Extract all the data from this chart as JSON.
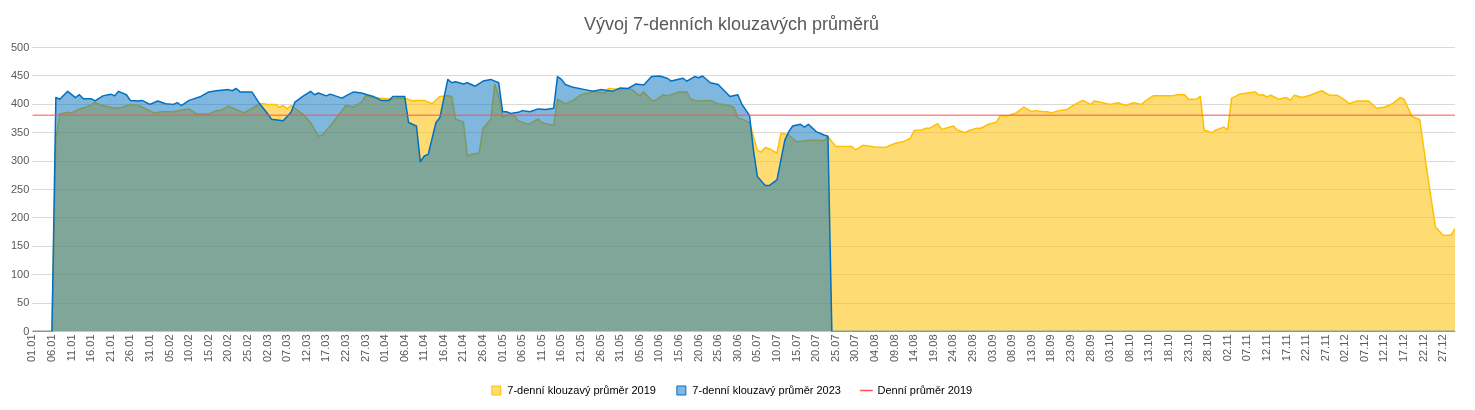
{
  "chart_data": {
    "type": "area",
    "title": "Vývoj 7-denních klouzavých průměrů",
    "xlim": [
      "--01-01",
      "--12-30"
    ],
    "xticks": [
      {
        "value": "--01-01",
        "label": "01.01"
      },
      {
        "value": "--01-06",
        "label": "06.01"
      },
      {
        "value": "--01-11",
        "label": "11.01"
      },
      {
        "value": "--01-16",
        "label": "16.01"
      },
      {
        "value": "--01-21",
        "label": "21.01"
      },
      {
        "value": "--01-26",
        "label": "26.01"
      },
      {
        "value": "--01-31",
        "label": "31.01"
      },
      {
        "value": "--02-05",
        "label": "05.02"
      },
      {
        "value": "--02-10",
        "label": "10.02"
      },
      {
        "value": "--02-15",
        "label": "15.02"
      },
      {
        "value": "--02-20",
        "label": "20.02"
      },
      {
        "value": "--02-25",
        "label": "25.02"
      },
      {
        "value": "--03-02",
        "label": "02.03"
      },
      {
        "value": "--03-07",
        "label": "07.03"
      },
      {
        "value": "--03-12",
        "label": "12.03"
      },
      {
        "value": "--03-17",
        "label": "17.03"
      },
      {
        "value": "--03-22",
        "label": "22.03"
      },
      {
        "value": "--03-27",
        "label": "27.03"
      },
      {
        "value": "--04-01",
        "label": "01.04"
      },
      {
        "value": "--04-06",
        "label": "06.04"
      },
      {
        "value": "--04-11",
        "label": "11.04"
      },
      {
        "value": "--04-16",
        "label": "16.04"
      },
      {
        "value": "--04-21",
        "label": "21.04"
      },
      {
        "value": "--04-26",
        "label": "26.04"
      },
      {
        "value": "--05-01",
        "label": "01.05"
      },
      {
        "value": "--05-06",
        "label": "06.05"
      },
      {
        "value": "--05-11",
        "label": "11.05"
      },
      {
        "value": "--05-16",
        "label": "16.05"
      },
      {
        "value": "--05-21",
        "label": "21.05"
      },
      {
        "value": "--05-26",
        "label": "26.05"
      },
      {
        "value": "--05-31",
        "label": "31.05"
      },
      {
        "value": "--06-05",
        "label": "05.06"
      },
      {
        "value": "--06-10",
        "label": "10.06"
      },
      {
        "value": "--06-15",
        "label": "15.06"
      },
      {
        "value": "--06-20",
        "label": "20.06"
      },
      {
        "value": "--06-25",
        "label": "25.06"
      },
      {
        "value": "--06-30",
        "label": "30.06"
      },
      {
        "value": "--07-05",
        "label": "05.07"
      },
      {
        "value": "--07-10",
        "label": "10.07"
      },
      {
        "value": "--07-15",
        "label": "15.07"
      },
      {
        "value": "--07-20",
        "label": "20.07"
      },
      {
        "value": "--07-25",
        "label": "25.07"
      },
      {
        "value": "--07-30",
        "label": "30.07"
      },
      {
        "value": "--08-04",
        "label": "04.08"
      },
      {
        "value": "--08-09",
        "label": "09.08"
      },
      {
        "value": "--08-14",
        "label": "14.08"
      },
      {
        "value": "--08-19",
        "label": "19.08"
      },
      {
        "value": "--08-24",
        "label": "24.08"
      },
      {
        "value": "--08-29",
        "label": "29.08"
      },
      {
        "value": "--09-03",
        "label": "03.09"
      },
      {
        "value": "--09-08",
        "label": "08.09"
      },
      {
        "value": "--09-13",
        "label": "13.09"
      },
      {
        "value": "--09-18",
        "label": "18.09"
      },
      {
        "value": "--09-23",
        "label": "23.09"
      },
      {
        "value": "--09-28",
        "label": "28.09"
      },
      {
        "value": "--10-03",
        "label": "03.10"
      },
      {
        "value": "--10-08",
        "label": "08.10"
      },
      {
        "value": "--10-13",
        "label": "13.10"
      },
      {
        "value": "--10-18",
        "label": "18.10"
      },
      {
        "value": "--10-23",
        "label": "23.10"
      },
      {
        "value": "--10-28",
        "label": "28.10"
      },
      {
        "value": "--11-02",
        "label": "02.11"
      },
      {
        "value": "--11-07",
        "label": "07.11"
      },
      {
        "value": "--11-12",
        "label": "12.11"
      },
      {
        "value": "--11-17",
        "label": "17.11"
      },
      {
        "value": "--11-22",
        "label": "22.11"
      },
      {
        "value": "--11-27",
        "label": "27.11"
      },
      {
        "value": "--12-02",
        "label": "02.12"
      },
      {
        "value": "--12-07",
        "label": "07.12"
      },
      {
        "value": "--12-12",
        "label": "12.12"
      },
      {
        "value": "--12-17",
        "label": "17.12"
      },
      {
        "value": "--12-22",
        "label": "22.12"
      },
      {
        "value": "--12-27",
        "label": "27.12"
      }
    ],
    "ylim": [
      0,
      500
    ],
    "yticks": [
      0,
      50,
      100,
      150,
      200,
      250,
      300,
      350,
      400,
      450,
      500
    ],
    "grid": "y",
    "legend": "bottom",
    "series": [
      {
        "name": "7-denní klouzavý průměr 2019",
        "color": "#ffc000",
        "x": [
          "--01-01",
          "--01-06",
          "--01-07",
          "--01-08",
          "--01-10",
          "--01-11",
          "--01-13",
          "--01-15",
          "--01-17",
          "--01-19",
          "--01-22",
          "--01-24",
          "--01-26",
          "--01-28",
          "--01-30",
          "--02-01",
          "--02-03",
          "--02-06",
          "--02-09",
          "--02-10",
          "--02-12",
          "--02-15",
          "--02-17",
          "--02-18",
          "--02-20",
          "--02-22",
          "--02-24",
          "--02-26",
          "--02-28",
          "--03-01",
          "--03-02",
          "--03-04",
          "--03-05",
          "--03-06",
          "--03-07",
          "--03-08",
          "--03-11",
          "--03-13",
          "--03-15",
          "--03-16",
          "--03-18",
          "--03-20",
          "--03-22",
          "--03-24",
          "--03-26",
          "--03-27",
          "--03-29",
          "--03-31",
          "--04-03",
          "--04-04",
          "--04-06",
          "--04-08",
          "--04-09",
          "--04-11",
          "--04-13",
          "--04-15",
          "--04-17",
          "--04-18",
          "--04-19",
          "--04-21",
          "--04-22",
          "--04-23",
          "--04-25",
          "--04-26",
          "--04-28",
          "--04-29",
          "--04-30",
          "--05-01",
          "--05-02",
          "--05-04",
          "--05-05",
          "--05-07",
          "--05-08",
          "--05-10",
          "--05-11",
          "--05-12",
          "--05-14",
          "--05-15",
          "--05-17",
          "--05-19",
          "--05-21",
          "--05-23",
          "--05-24",
          "--05-27",
          "--05-28",
          "--05-31",
          "--06-02",
          "--06-03",
          "--06-05",
          "--06-06",
          "--06-08",
          "--06-09",
          "--06-11",
          "--06-12",
          "--06-15",
          "--06-17",
          "--06-18",
          "--06-19",
          "--06-21",
          "--06-23",
          "--06-25",
          "--06-27",
          "--06-29",
          "--06-30",
          "--07-02",
          "--07-03",
          "--07-05",
          "--07-06",
          "--07-07",
          "--07-08",
          "--07-10",
          "--07-11",
          "--07-13",
          "--07-15",
          "--07-18",
          "--07-20",
          "--07-22",
          "--07-23",
          "--07-25",
          "--07-27",
          "--07-29",
          "--07-30",
          "--08-01",
          "--08-04",
          "--08-06",
          "--08-07",
          "--08-09",
          "--08-11",
          "--08-13",
          "--08-14",
          "--08-16",
          "--08-17",
          "--08-18",
          "--08-20",
          "--08-21",
          "--08-24",
          "--08-25",
          "--08-27",
          "--08-28",
          "--08-30",
          "--08-31",
          "--09-02",
          "--09-04",
          "--09-05",
          "--09-07",
          "--09-09",
          "--09-11",
          "--09-13",
          "--09-14",
          "--09-16",
          "--09-17",
          "--09-18",
          "--09-20",
          "--09-22",
          "--09-24",
          "--09-26",
          "--09-28",
          "--09-29",
          "--10-01",
          "--10-03",
          "--10-05",
          "--10-07",
          "--10-09",
          "--10-11",
          "--10-12",
          "--10-14",
          "--10-17",
          "--10-19",
          "--10-20",
          "--10-22",
          "--10-23",
          "--10-25",
          "--10-26",
          "--10-27",
          "--10-29",
          "--10-30",
          "--11-01",
          "--11-02",
          "--11-03",
          "--11-04",
          "--11-05",
          "--11-07",
          "--11-09",
          "--11-10",
          "--11-11",
          "--11-12",
          "--11-13",
          "--11-15",
          "--11-17",
          "--11-18",
          "--11-19",
          "--11-21",
          "--11-23",
          "--11-26",
          "--11-28",
          "--11-30",
          "--12-02",
          "--12-03",
          "--12-05",
          "--12-08",
          "--12-10",
          "--12-12",
          "--12-14",
          "--12-16",
          "--12-17",
          "--12-19",
          "--12-21",
          "--12-23",
          "--12-25",
          "--12-27",
          "--12-29",
          "--12-30"
        ],
        "values": [
          0,
          0,
          337,
          383,
          386,
          385,
          392,
          396,
          403,
          398,
          393,
          395,
          400,
          398,
          392,
          385,
          387,
          387,
          391,
          392,
          383,
          383,
          389,
          389,
          397,
          391,
          385,
          393,
          401,
          401,
          400,
          400,
          395,
          398,
          392,
          398,
          383,
          368,
          344,
          346,
          362,
          380,
          398,
          395,
          404,
          415,
          412,
          411,
          409,
          411,
          411,
          406,
          407,
          407,
          401,
          414,
          415,
          414,
          374,
          369,
          309,
          312,
          314,
          358,
          374,
          435,
          414,
          377,
          381,
          380,
          371,
          366,
          366,
          374,
          368,
          366,
          363,
          409,
          401,
          407,
          417,
          420,
          423,
          420,
          428,
          426,
          428,
          426,
          415,
          422,
          407,
          407,
          417,
          415,
          422,
          422,
          409,
          407,
          406,
          407,
          401,
          399,
          395,
          377,
          371,
          368,
          319,
          316,
          324,
          322,
          314,
          349,
          346,
          334,
          337,
          337,
          336,
          343,
          326,
          326,
          326,
          320,
          328,
          325,
          324,
          325,
          331,
          334,
          340,
          354,
          355,
          358,
          358,
          366,
          356,
          362,
          355,
          350,
          354,
          358,
          358,
          365,
          369,
          380,
          380,
          385,
          395,
          387,
          389,
          387,
          387,
          385,
          389,
          391,
          400,
          407,
          400,
          406,
          403,
          400,
          403,
          398,
          403,
          400,
          406,
          415,
          415,
          415,
          417,
          417,
          409,
          409,
          414,
          355,
          350,
          355,
          360,
          355,
          411,
          414,
          418,
          420,
          422,
          416,
          417,
          413,
          416,
          409,
          412,
          407,
          416,
          412,
          416,
          424,
          416,
          416,
          407,
          401,
          406,
          406,
          393,
          395,
          401,
          412,
          409,
          379,
          373,
          276,
          184,
          169,
          170,
          181
        ]
      },
      {
        "name": "7-denní klouzavý průměr 2023",
        "color": "#0070c0",
        "x": [
          "--01-01",
          "--01-06",
          "--01-07",
          "--01-08",
          "--01-10",
          "--01-12",
          "--01-13",
          "--01-14",
          "--01-16",
          "--01-17",
          "--01-19",
          "--01-21",
          "--01-22",
          "--01-23",
          "--01-25",
          "--01-26",
          "--01-28",
          "--01-29",
          "--01-31",
          "--02-02",
          "--02-04",
          "--02-06",
          "--02-07",
          "--02-08",
          "--02-10",
          "--02-13",
          "--02-15",
          "--02-17",
          "--02-20",
          "--02-21",
          "--02-22",
          "--02-23",
          "--02-26",
          "--02-28",
          "--03-02",
          "--03-03",
          "--03-06",
          "--03-08",
          "--03-09",
          "--03-11",
          "--03-13",
          "--03-14",
          "--03-15",
          "--03-17",
          "--03-18",
          "--03-21",
          "--03-22",
          "--03-24",
          "--03-26",
          "--03-27",
          "--03-29",
          "--03-31",
          "--04-02",
          "--04-03",
          "--04-06",
          "--04-07",
          "--04-09",
          "--04-10",
          "--04-11",
          "--04-12",
          "--04-14",
          "--04-15",
          "--04-17",
          "--04-18",
          "--04-19",
          "--04-21",
          "--04-22",
          "--04-24",
          "--04-26",
          "--04-28",
          "--04-29",
          "--04-30",
          "--05-01",
          "--05-02",
          "--05-03",
          "--05-05",
          "--05-06",
          "--05-08",
          "--05-10",
          "--05-12",
          "--05-14",
          "--05-15",
          "--05-16",
          "--05-17",
          "--05-19",
          "--05-22",
          "--05-24",
          "--05-26",
          "--05-29",
          "--05-31",
          "--06-02",
          "--06-04",
          "--06-06",
          "--06-08",
          "--06-10",
          "--06-12",
          "--06-13",
          "--06-16",
          "--06-17",
          "--06-19",
          "--06-20",
          "--06-21",
          "--06-23",
          "--06-25",
          "--06-27",
          "--06-28",
          "--06-30",
          "--07-01",
          "--07-03",
          "--07-04",
          "--07-05",
          "--07-07",
          "--07-08",
          "--07-10",
          "--07-12",
          "--07-13",
          "--07-14",
          "--07-16",
          "--07-17",
          "--07-18",
          "--07-20",
          "--07-22",
          "--07-23",
          "--07-24",
          "--12-30"
        ],
        "values": [
          0,
          0,
          412,
          409,
          423,
          412,
          417,
          410,
          410,
          406,
          415,
          418,
          415,
          423,
          417,
          407,
          406,
          407,
          400,
          406,
          401,
          400,
          403,
          398,
          407,
          414,
          422,
          424,
          426,
          424,
          428,
          422,
          422,
          401,
          384,
          374,
          371,
          386,
          404,
          414,
          423,
          417,
          420,
          415,
          418,
          411,
          415,
          422,
          420,
          418,
          414,
          407,
          407,
          414,
          414,
          368,
          362,
          299,
          309,
          312,
          368,
          377,
          444,
          438,
          440,
          436,
          438,
          432,
          441,
          444,
          441,
          438,
          387,
          387,
          384,
          386,
          389,
          387,
          392,
          391,
          393,
          449,
          444,
          435,
          430,
          426,
          423,
          426,
          423,
          429,
          428,
          436,
          434,
          449,
          450,
          446,
          441,
          446,
          441,
          449,
          447,
          450,
          438,
          435,
          421,
          414,
          417,
          401,
          380,
          319,
          273,
          257,
          257,
          267,
          337,
          352,
          362,
          365,
          360,
          365,
          352,
          346,
          344,
          0,
          0
        ]
      },
      {
        "name": "Denní průměr 2019",
        "type": "line",
        "color": "#ff5050",
        "x": [
          "--01-01",
          "--12-30"
        ],
        "values": [
          381,
          381
        ]
      }
    ]
  }
}
